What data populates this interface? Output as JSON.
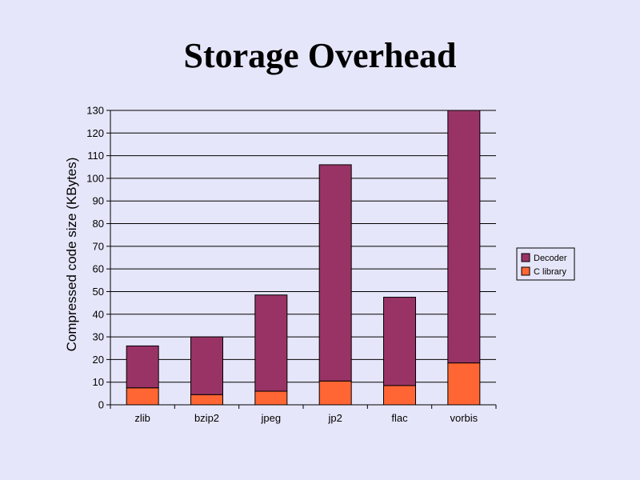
{
  "title": "Storage Overhead",
  "chart_data": {
    "type": "bar",
    "stacked": true,
    "categories": [
      "zlib",
      "bzip2",
      "jpeg",
      "jp2",
      "flac",
      "vorbis"
    ],
    "series": [
      {
        "name": "C library",
        "color": "#ff6633",
        "values": [
          7.5,
          4.5,
          6,
          10.5,
          8.5,
          18.5
        ]
      },
      {
        "name": "Decoder",
        "color": "#993366",
        "values": [
          18.5,
          25.5,
          42.5,
          95.5,
          39,
          111.5
        ]
      }
    ],
    "ylabel": "Compressed code size (KBytes)",
    "ylim": [
      0,
      130
    ],
    "yticks": [
      0,
      10,
      20,
      30,
      40,
      50,
      60,
      70,
      80,
      90,
      100,
      110,
      120,
      130
    ],
    "grid": true,
    "legend": "right"
  }
}
